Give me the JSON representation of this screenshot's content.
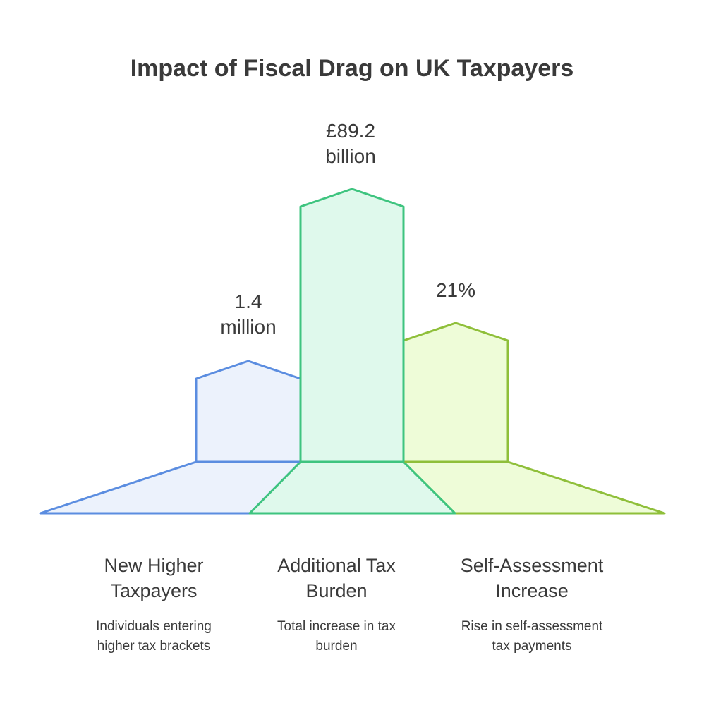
{
  "title": "Impact of Fiscal Drag on UK Taxpayers",
  "items": [
    {
      "value_lines": [
        "1.4",
        "million"
      ],
      "title_lines": [
        "New Higher",
        "Taxpayers"
      ],
      "desc_lines": [
        "Individuals entering",
        "higher tax brackets"
      ],
      "stroke": "#5b8de0",
      "fill": "#ecf2fc"
    },
    {
      "value_lines": [
        "£89.2",
        "billion"
      ],
      "title_lines": [
        "Additional Tax",
        "Burden"
      ],
      "desc_lines": [
        "Total increase in tax",
        "burden"
      ],
      "stroke": "#3ec47f",
      "fill": "#dff9ec"
    },
    {
      "value_lines": [
        "21%"
      ],
      "title_lines": [
        "Self-Assessment",
        "Increase"
      ],
      "desc_lines": [
        "Rise in self-assessment",
        "tax payments"
      ],
      "stroke": "#8fbf3a",
      "fill": "#eefcd8"
    }
  ]
}
